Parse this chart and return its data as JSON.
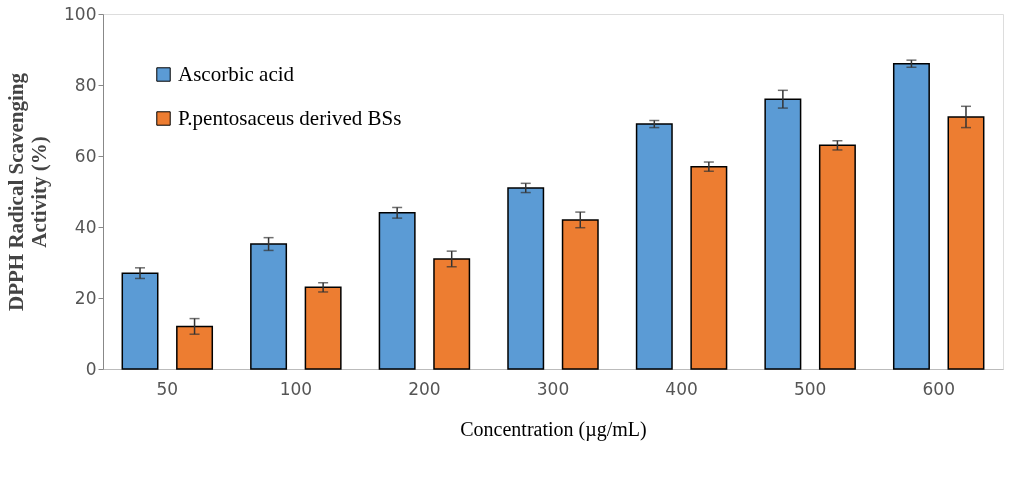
{
  "chart_data": {
    "type": "bar",
    "xlabel": "Concentration (µg/mL)",
    "ylabel": "DPPH Radical Scavenging\nActivity (%)",
    "categories": [
      "50",
      "100",
      "200",
      "300",
      "400",
      "500",
      "600"
    ],
    "series": [
      {
        "name": "Ascorbic acid",
        "color": "#5b9bd5",
        "values": [
          27,
          35.2,
          44,
          51,
          69,
          76,
          86
        ],
        "errors": [
          1.5,
          1.8,
          1.5,
          1.3,
          1,
          2.5,
          1
        ]
      },
      {
        "name": "P.pentosaceus derived BSs",
        "color": "#ed7d31",
        "values": [
          12,
          23,
          31,
          42,
          57,
          63,
          71
        ],
        "errors": [
          2.2,
          1.3,
          2.2,
          2.2,
          1.3,
          1.3,
          3
        ]
      }
    ],
    "ylim": [
      0,
      100
    ],
    "yticks": [
      0,
      20,
      40,
      60,
      80,
      100
    ],
    "grid": false,
    "legend": "top left"
  }
}
